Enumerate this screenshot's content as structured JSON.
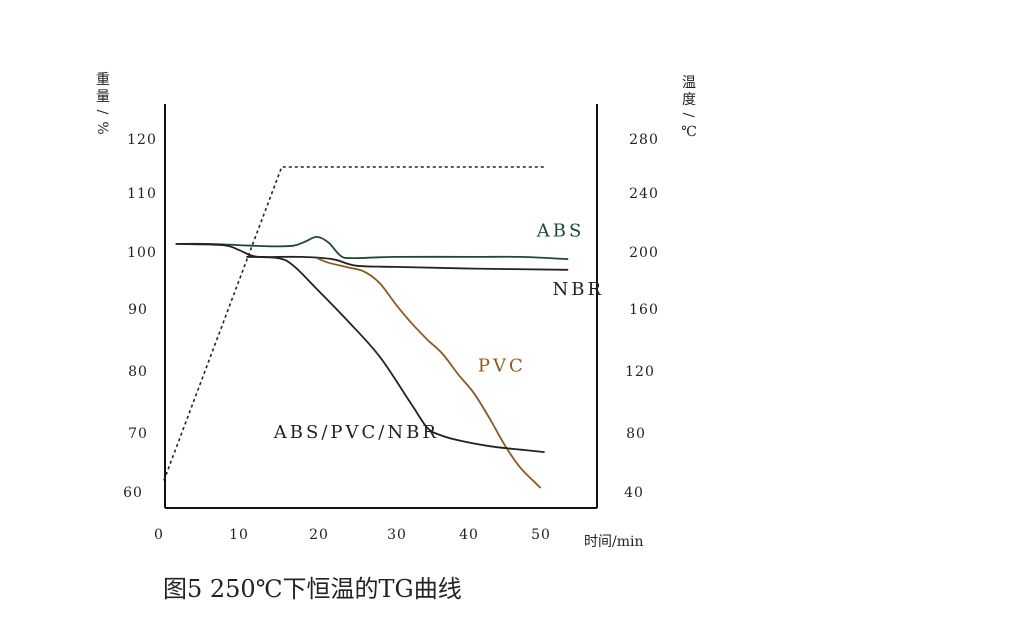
{
  "chart_data": {
    "type": "line",
    "caption": "图5 250℃下恒温的TG曲线",
    "xlabel": "时间/min",
    "ylabel_left": [
      "重",
      "量",
      "/",
      "%"
    ],
    "ylabel_right": [
      "温",
      "度",
      "/",
      "℃"
    ],
    "xlim": [
      0,
      55
    ],
    "ylim_left": [
      58,
      124
    ],
    "ylim_right": [
      28,
      296
    ],
    "x_ticks": [
      "0",
      "10",
      "20",
      "30",
      "40",
      "50"
    ],
    "y_left_ticks": [
      "120",
      "110",
      "100",
      "90",
      "80",
      "70",
      "60"
    ],
    "y_right_ticks": [
      "280",
      "240",
      "200",
      "160",
      "120",
      "80",
      "40"
    ],
    "grid": false,
    "series": [
      {
        "name": "ABS",
        "axis": "left",
        "color": "#1e4a32",
        "style": "solid",
        "label_at": [
          48,
          102.5
        ],
        "points": [
          [
            2,
            101.2
          ],
          [
            6,
            101.2
          ],
          [
            10,
            101
          ],
          [
            14,
            100.8
          ],
          [
            17,
            100.9
          ],
          [
            18.5,
            101.6
          ],
          [
            20,
            102.4
          ],
          [
            21.5,
            101.4
          ],
          [
            23,
            99.2
          ],
          [
            24.5,
            98.8
          ],
          [
            30,
            99
          ],
          [
            40,
            99
          ],
          [
            46,
            99
          ],
          [
            52,
            98.6
          ]
        ]
      },
      {
        "name": "NBR",
        "axis": "left",
        "color": "#222222",
        "style": "solid",
        "label_at": [
          50,
          92.5
        ],
        "points": [
          [
            2,
            101.2
          ],
          [
            8,
            101
          ],
          [
            10,
            100.2
          ],
          [
            11.5,
            99.3
          ],
          [
            13,
            99
          ],
          [
            18,
            99
          ],
          [
            22,
            98.6
          ],
          [
            25,
            97.5
          ],
          [
            30,
            97.3
          ],
          [
            40,
            97
          ],
          [
            52,
            96.8
          ]
        ]
      },
      {
        "name": "PVC",
        "axis": "left",
        "color": "#8a5a1e",
        "style": "solid",
        "label_at": [
          40.5,
          79.5
        ],
        "points": [
          [
            20,
            98.8
          ],
          [
            21.5,
            98
          ],
          [
            24,
            97.2
          ],
          [
            26,
            96.5
          ],
          [
            28,
            94.5
          ],
          [
            30,
            91
          ],
          [
            32,
            87.8
          ],
          [
            34,
            85
          ],
          [
            36,
            82.5
          ],
          [
            38,
            79
          ],
          [
            40,
            75.8
          ],
          [
            42,
            71.5
          ],
          [
            44,
            66.8
          ],
          [
            46,
            63
          ],
          [
            48.5,
            59.7
          ]
        ]
      },
      {
        "name": "ABS/PVC/NBR",
        "axis": "left",
        "color": "#222222",
        "style": "solid",
        "label_at": [
          14.5,
          68.2
        ],
        "points": [
          [
            11,
            99
          ],
          [
            15,
            98.8
          ],
          [
            17,
            97.5
          ],
          [
            20,
            93.5
          ],
          [
            24,
            88
          ],
          [
            28,
            82
          ],
          [
            32,
            74
          ],
          [
            34,
            70
          ],
          [
            35.5,
            68.8
          ],
          [
            38,
            67.8
          ],
          [
            42,
            66.8
          ],
          [
            46,
            66.2
          ],
          [
            49,
            65.8
          ]
        ]
      },
      {
        "name": "",
        "axis": "right",
        "color": "#222222",
        "style": "dotted",
        "points": [
          [
            0.5,
            47
          ],
          [
            15.5,
            256
          ],
          [
            49,
            256
          ]
        ]
      }
    ]
  }
}
